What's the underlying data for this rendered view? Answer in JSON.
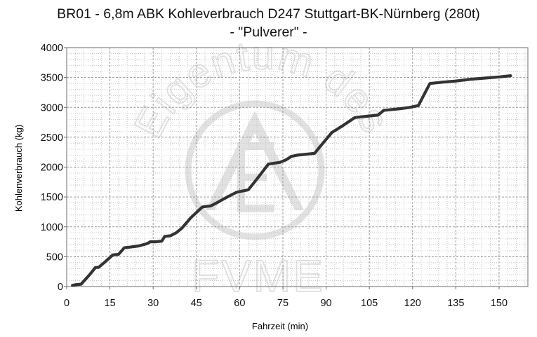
{
  "chart_data": {
    "type": "line",
    "title": "BR01 - 6,8m ABK Kohleverbrauch D247 Stuttgart-BK-Nürnberg (280t)",
    "subtitle": "- \"Pulverer\" -",
    "xlabel": "Fahrzeit (min)",
    "ylabel": "Kohlenverbrauch (kg)",
    "xlim": [
      0,
      160
    ],
    "ylim": [
      0,
      4000
    ],
    "xticks": [
      "0",
      "15",
      "30",
      "45",
      "60",
      "75",
      "90",
      "105",
      "120",
      "135",
      "150"
    ],
    "yticks": [
      "0",
      "500",
      "1000",
      "1500",
      "2000",
      "2500",
      "3000",
      "3500",
      "4000"
    ],
    "grid": true,
    "line_color": "#333333",
    "watermark": "Eigentum des FVME",
    "series": [
      {
        "x": [
          2,
          3,
          5,
          8,
          10,
          11,
          13,
          16,
          18,
          20,
          22,
          25,
          28,
          29,
          31,
          33,
          34,
          36,
          38,
          40,
          43,
          47,
          48,
          50,
          52,
          55,
          59,
          63,
          66,
          70,
          74,
          76,
          78,
          80,
          82,
          86,
          88,
          92,
          96,
          100,
          104,
          108,
          110,
          112,
          116,
          119,
          122,
          126,
          130,
          135,
          140,
          145,
          150,
          154
        ],
        "y": [
          20,
          30,
          40,
          200,
          320,
          320,
          400,
          530,
          540,
          650,
          660,
          680,
          720,
          750,
          750,
          760,
          840,
          850,
          900,
          980,
          1150,
          1330,
          1340,
          1350,
          1400,
          1480,
          1580,
          1620,
          1800,
          2050,
          2080,
          2120,
          2180,
          2200,
          2210,
          2230,
          2350,
          2580,
          2700,
          2830,
          2850,
          2870,
          2950,
          2960,
          2980,
          3000,
          3030,
          3400,
          3420,
          3440,
          3470,
          3490,
          3510,
          3530
        ]
      }
    ]
  }
}
